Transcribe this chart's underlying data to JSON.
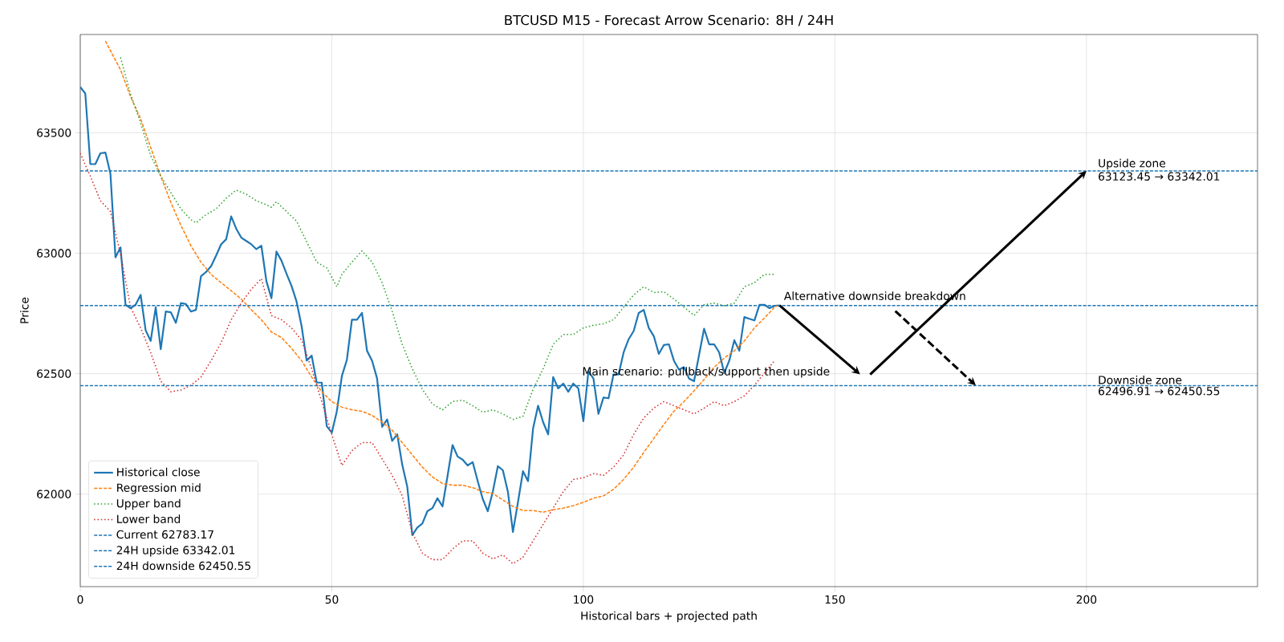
{
  "chart_data": {
    "type": "line",
    "title": "BTCUSD M15 - Forecast Arrow Scenario: 8H / 24H",
    "xlabel": "Historical bars + projected path",
    "ylabel": "Price",
    "xlim": [
      0,
      234
    ],
    "ylim": [
      61616,
      63908
    ],
    "xticks": [
      0,
      50,
      100,
      150,
      200
    ],
    "yticks": [
      62000,
      62500,
      63000,
      63500
    ],
    "grid": true,
    "legend": "bottom left",
    "series": [
      {
        "name": "Historical close",
        "color": "#1f77b4",
        "line_style": "solid",
        "x": [
          0,
          1,
          2,
          3,
          4,
          5,
          6,
          7,
          8,
          9,
          10,
          11,
          12,
          13,
          14,
          15,
          16,
          17,
          18,
          19,
          20,
          21,
          22,
          23,
          24,
          25,
          26,
          27,
          28,
          29,
          30,
          31,
          32,
          33,
          34,
          35,
          36,
          37,
          38,
          39,
          40,
          41,
          42,
          43,
          44,
          45,
          46,
          47,
          48,
          49,
          50,
          51,
          52,
          53,
          54,
          55,
          56,
          57,
          58,
          59,
          60,
          61,
          62,
          63,
          64,
          65,
          66,
          67,
          68,
          69,
          70,
          71,
          72,
          73,
          74,
          75,
          76,
          77,
          78,
          79,
          80,
          81,
          82,
          83,
          84,
          85,
          86,
          87,
          88,
          89,
          90,
          91,
          92,
          93,
          94,
          95,
          96,
          97,
          98,
          99,
          100,
          101,
          102,
          103,
          104,
          105,
          106,
          107,
          108,
          109,
          110,
          111,
          112,
          113,
          114,
          115,
          116,
          117,
          118,
          119,
          120,
          121,
          122,
          123,
          124,
          125,
          126,
          127,
          128,
          129,
          130,
          131,
          132,
          133,
          134,
          135,
          136,
          137,
          138,
          139
        ],
        "values": [
          63690,
          63663,
          63370,
          63370,
          63415,
          63418,
          63330,
          62983,
          63024,
          62786,
          62772,
          62786,
          62827,
          62680,
          62636,
          62776,
          62602,
          62758,
          62755,
          62711,
          62793,
          62789,
          62758,
          62765,
          62905,
          62922,
          62946,
          62990,
          63037,
          63058,
          63153,
          63102,
          63065,
          63051,
          63037,
          63017,
          63031,
          62884,
          62813,
          63007,
          62969,
          62915,
          62864,
          62799,
          62697,
          62554,
          62575,
          62463,
          62463,
          62282,
          62255,
          62344,
          62490,
          62558,
          62724,
          62724,
          62752,
          62595,
          62554,
          62480,
          62279,
          62310,
          62221,
          62248,
          62122,
          62031,
          61830,
          61861,
          61878,
          61929,
          61942,
          61983,
          61949,
          62075,
          62204,
          62156,
          62143,
          62119,
          62133,
          62054,
          61980,
          61929,
          62010,
          62116,
          62099,
          62010,
          61843,
          61966,
          62095,
          62054,
          62272,
          62367,
          62299,
          62248,
          62486,
          62439,
          62459,
          62425,
          62459,
          62439,
          62303,
          62510,
          62480,
          62333,
          62401,
          62398,
          62497,
          62497,
          62588,
          62643,
          62677,
          62752,
          62765,
          62690,
          62656,
          62582,
          62619,
          62622,
          62554,
          62517,
          62527,
          62480,
          62469,
          62578,
          62687,
          62622,
          62622,
          62588,
          62503,
          62554,
          62639,
          62595,
          62735,
          62728,
          62721,
          62786,
          62786,
          62772,
          62782,
          62783
        ]
      },
      {
        "name": "Regression mid",
        "color": "#ff7f0e",
        "line_style": "dashed",
        "x": [
          5,
          8,
          10,
          12,
          14,
          16,
          18,
          20,
          22,
          24,
          26,
          28,
          30,
          32,
          34,
          36,
          38,
          40,
          42,
          44,
          46,
          48,
          50,
          52,
          54,
          56,
          58,
          60,
          62,
          64,
          66,
          68,
          70,
          72,
          74,
          76,
          78,
          80,
          82,
          84,
          86,
          88,
          90,
          92,
          94,
          96,
          98,
          100,
          102,
          104,
          106,
          108,
          110,
          112,
          114,
          116,
          118,
          120,
          122,
          124,
          126,
          128,
          130,
          132,
          134,
          136,
          138,
          139
        ],
        "values": [
          63881,
          63762,
          63650,
          63558,
          63439,
          63320,
          63211,
          63116,
          63031,
          62963,
          62912,
          62878,
          62844,
          62810,
          62765,
          62724,
          62673,
          62650,
          62605,
          62554,
          62486,
          62425,
          62384,
          62361,
          62350,
          62344,
          62327,
          62299,
          62265,
          62214,
          62163,
          62112,
          62071,
          62044,
          62037,
          62037,
          62027,
          62010,
          62003,
          61976,
          61949,
          61932,
          61932,
          61925,
          61935,
          61942,
          61952,
          61966,
          61983,
          61993,
          62020,
          62061,
          62112,
          62173,
          62231,
          62289,
          62344,
          62384,
          62429,
          62476,
          62527,
          62565,
          62595,
          62636,
          62690,
          62731,
          62776,
          62786
        ]
      },
      {
        "name": "Upper band",
        "color": "#2ca02c",
        "line_style": "dotted",
        "x": [
          8,
          10,
          12,
          14,
          16,
          18,
          20,
          22,
          23,
          25,
          27,
          29,
          31,
          33,
          35,
          37,
          38,
          39,
          41,
          43,
          45,
          47,
          49,
          51,
          52,
          54,
          56,
          58,
          60,
          62,
          64,
          66,
          68,
          70,
          72,
          74,
          76,
          78,
          80,
          82,
          84,
          86,
          88,
          90,
          92,
          94,
          96,
          98,
          100,
          102,
          104,
          106,
          108,
          110,
          112,
          114,
          116,
          118,
          120,
          122,
          124,
          126,
          128,
          130,
          132,
          134,
          136,
          138
        ],
        "values": [
          63813,
          63660,
          63541,
          63405,
          63320,
          63252,
          63184,
          63139,
          63126,
          63160,
          63184,
          63228,
          63262,
          63245,
          63218,
          63201,
          63191,
          63214,
          63173,
          63133,
          63048,
          62963,
          62939,
          62861,
          62912,
          62963,
          63010,
          62963,
          62878,
          62759,
          62622,
          62520,
          62435,
          62374,
          62350,
          62384,
          62390,
          62367,
          62340,
          62350,
          62333,
          62310,
          62323,
          62435,
          62520,
          62622,
          62663,
          62663,
          62690,
          62701,
          62707,
          62724,
          62776,
          62827,
          62861,
          62837,
          62840,
          62810,
          62776,
          62742,
          62786,
          62793,
          62782,
          62793,
          62861,
          62878,
          62912,
          62912
        ]
      },
      {
        "name": "Lower band",
        "color": "#d62728",
        "line_style": "dotted",
        "x": [
          0,
          2,
          4,
          6,
          8,
          10,
          12,
          14,
          16,
          18,
          20,
          22,
          24,
          26,
          28,
          30,
          32,
          34,
          36,
          38,
          40,
          42,
          44,
          46,
          48,
          50,
          52,
          54,
          56,
          58,
          60,
          62,
          64,
          66,
          68,
          70,
          72,
          74,
          76,
          78,
          80,
          82,
          84,
          86,
          88,
          90,
          92,
          94,
          96,
          98,
          100,
          102,
          104,
          106,
          108,
          110,
          112,
          114,
          116,
          118,
          120,
          122,
          124,
          126,
          128,
          130,
          132,
          134,
          136,
          138
        ],
        "values": [
          63415,
          63320,
          63218,
          63173,
          62997,
          62776,
          62690,
          62588,
          62469,
          62425,
          62432,
          62452,
          62486,
          62554,
          62629,
          62724,
          62793,
          62850,
          62895,
          62741,
          62724,
          62690,
          62639,
          62520,
          62384,
          62248,
          62119,
          62180,
          62214,
          62214,
          62146,
          62078,
          61993,
          61840,
          61755,
          61728,
          61728,
          61772,
          61806,
          61806,
          61755,
          61731,
          61748,
          61711,
          61738,
          61806,
          61874,
          61942,
          62010,
          62061,
          62068,
          62085,
          62078,
          62112,
          62163,
          62248,
          62316,
          62357,
          62384,
          62367,
          62350,
          62333,
          62357,
          62384,
          62367,
          62384,
          62408,
          62452,
          62503,
          62554
        ]
      }
    ],
    "ref_lines": [
      {
        "axis": "y",
        "value": 62783.17,
        "label": "Current 62783.17",
        "color": "#1f77b4",
        "line_style": "dashed"
      },
      {
        "axis": "y",
        "value": 63342.01,
        "label": "24H upside 63342.01",
        "color": "#1f77b4",
        "line_style": "dashed"
      },
      {
        "axis": "y",
        "value": 62450.55,
        "label": "24H downside 62450.55",
        "color": "#1f77b4",
        "line_style": "dashed"
      }
    ],
    "annotations": [
      "Main scenario: pullback/support then upside",
      "Alternative downside breakdown",
      "Upside zone",
      "63123.45 → 63342.01",
      "Downside zone",
      "62496.91 → 62450.55"
    ]
  }
}
